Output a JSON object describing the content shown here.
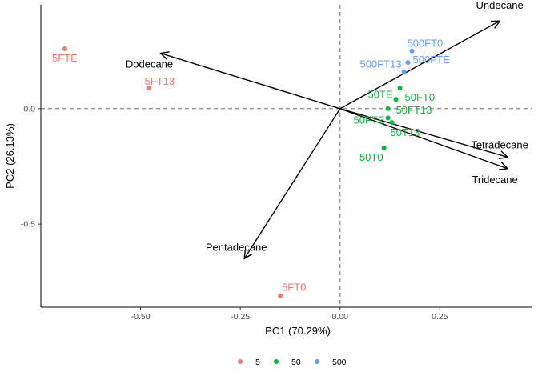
{
  "chart_data": {
    "type": "scatter",
    "subtype": "pca-biplot",
    "xlabel": "PC1 (70.29%)",
    "ylabel": "PC2 (26.13%)",
    "xlim": [
      -0.75,
      0.48
    ],
    "ylim": [
      -0.86,
      0.45
    ],
    "x_ticks": [
      -0.5,
      -0.25,
      0.0,
      0.25
    ],
    "x_tick_labels": [
      "-0.50",
      "-0.25",
      "0.00",
      "0.25"
    ],
    "y_ticks": [
      -0.5,
      0.0
    ],
    "y_tick_labels": [
      "-0.5",
      "0.0"
    ],
    "reference_lines": {
      "x": 0,
      "y": 0,
      "style": "dashed"
    },
    "grid": false,
    "legend": {
      "position": "bottom",
      "entries": [
        {
          "name": "5",
          "color": "#F8766D"
        },
        {
          "name": "50",
          "color": "#00BA38"
        },
        {
          "name": "500",
          "color": "#619CFF"
        }
      ]
    },
    "series": [
      {
        "name": "5",
        "color": "#F8766D",
        "points": [
          {
            "label": "5FTE",
            "x": -0.69,
            "y": 0.26
          },
          {
            "label": "5FT13",
            "x": -0.48,
            "y": 0.09
          },
          {
            "label": "5FT0",
            "x": -0.15,
            "y": -0.81
          }
        ]
      },
      {
        "name": "50",
        "color": "#00BA38",
        "points": [
          {
            "label": "50FT0",
            "x": 0.15,
            "y": 0.09
          },
          {
            "label": "50TE",
            "x": 0.14,
            "y": 0.04
          },
          {
            "label": "50FT13",
            "x": 0.12,
            "y": 0.0
          },
          {
            "label": "50FTE",
            "x": 0.12,
            "y": -0.04
          },
          {
            "label": "50T13",
            "x": 0.13,
            "y": -0.06
          },
          {
            "label": "50T0",
            "x": 0.11,
            "y": -0.17
          }
        ]
      },
      {
        "name": "500",
        "color": "#619CFF",
        "points": [
          {
            "label": "500FT0",
            "x": 0.18,
            "y": 0.25
          },
          {
            "label": "500FTE",
            "x": 0.17,
            "y": 0.2
          },
          {
            "label": "500FT13",
            "x": 0.16,
            "y": 0.16
          }
        ]
      }
    ],
    "loadings": [
      {
        "label": "Undecane",
        "x": 0.4,
        "y": 0.38
      },
      {
        "label": "Dodecane",
        "x": -0.45,
        "y": 0.24
      },
      {
        "label": "Tetradecane",
        "x": 0.42,
        "y": -0.21
      },
      {
        "label": "Tridecane",
        "x": 0.42,
        "y": -0.26
      },
      {
        "label": "Pentadecane",
        "x": -0.24,
        "y": -0.65
      }
    ]
  }
}
